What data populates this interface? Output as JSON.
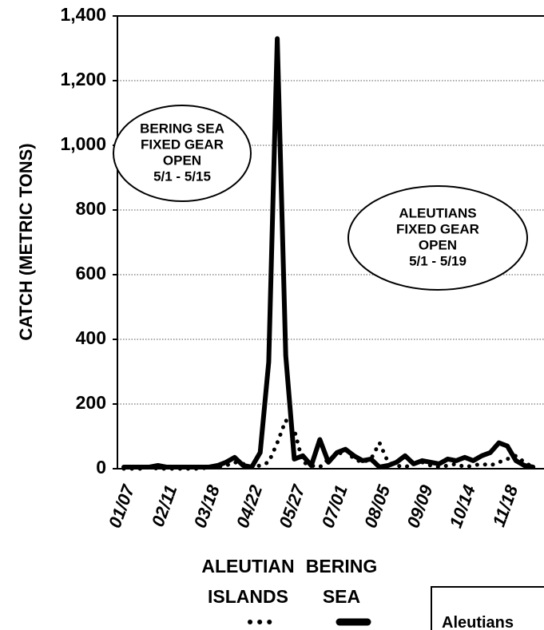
{
  "chart_data": {
    "type": "line",
    "y_label": "CATCH (METRIC TONS)",
    "categories": [
      "01/07",
      null,
      null,
      null,
      null,
      "02/11",
      null,
      null,
      null,
      null,
      "03/18",
      null,
      null,
      null,
      null,
      "04/22",
      null,
      null,
      null,
      null,
      "05/27",
      null,
      null,
      null,
      null,
      "07/01",
      null,
      null,
      null,
      null,
      "08/05",
      null,
      null,
      null,
      null,
      "09/09",
      null,
      null,
      null,
      null,
      "10/14",
      null,
      null,
      null,
      null,
      "11/18",
      null,
      null,
      null
    ],
    "series": [
      {
        "name": "ALEUTIAN ISLANDS",
        "color": "#000000",
        "style": "dotted",
        "values": [
          0,
          0,
          0,
          5,
          0,
          0,
          0,
          0,
          0,
          0,
          5,
          5,
          10,
          20,
          15,
          5,
          10,
          20,
          80,
          150,
          120,
          20,
          10,
          5,
          30,
          40,
          60,
          30,
          20,
          30,
          80,
          20,
          10,
          5,
          15,
          20,
          10,
          5,
          10,
          15,
          5,
          10,
          15,
          10,
          20,
          30,
          40,
          20,
          5
        ]
      },
      {
        "name": "BERING SEA",
        "color": "#000000",
        "style": "solid",
        "values": [
          5,
          5,
          5,
          5,
          10,
          5,
          5,
          5,
          5,
          5,
          5,
          10,
          20,
          35,
          10,
          5,
          50,
          330,
          1330,
          350,
          30,
          40,
          10,
          90,
          20,
          50,
          60,
          40,
          25,
          30,
          5,
          10,
          20,
          40,
          15,
          25,
          20,
          15,
          30,
          25,
          35,
          25,
          40,
          50,
          80,
          70,
          25,
          10,
          5
        ]
      }
    ],
    "ylim": [
      0,
      1400
    ],
    "yticks": [
      0,
      200,
      400,
      600,
      800,
      {
        "value": 1000,
        "label": "1,000"
      },
      {
        "value": 1200,
        "label": "1,200"
      },
      {
        "value": 1400,
        "label": "1,400"
      }
    ],
    "grid": true,
    "annotations": [
      {
        "lines": [
          "BERING SEA",
          "FIXED GEAR",
          "OPEN",
          "5/1 - 5/15"
        ]
      },
      {
        "lines": [
          "ALEUTIANS",
          "FIXED GEAR",
          "OPEN",
          "5/1  - 5/19"
        ]
      }
    ],
    "legend_header": "Aleutians"
  }
}
